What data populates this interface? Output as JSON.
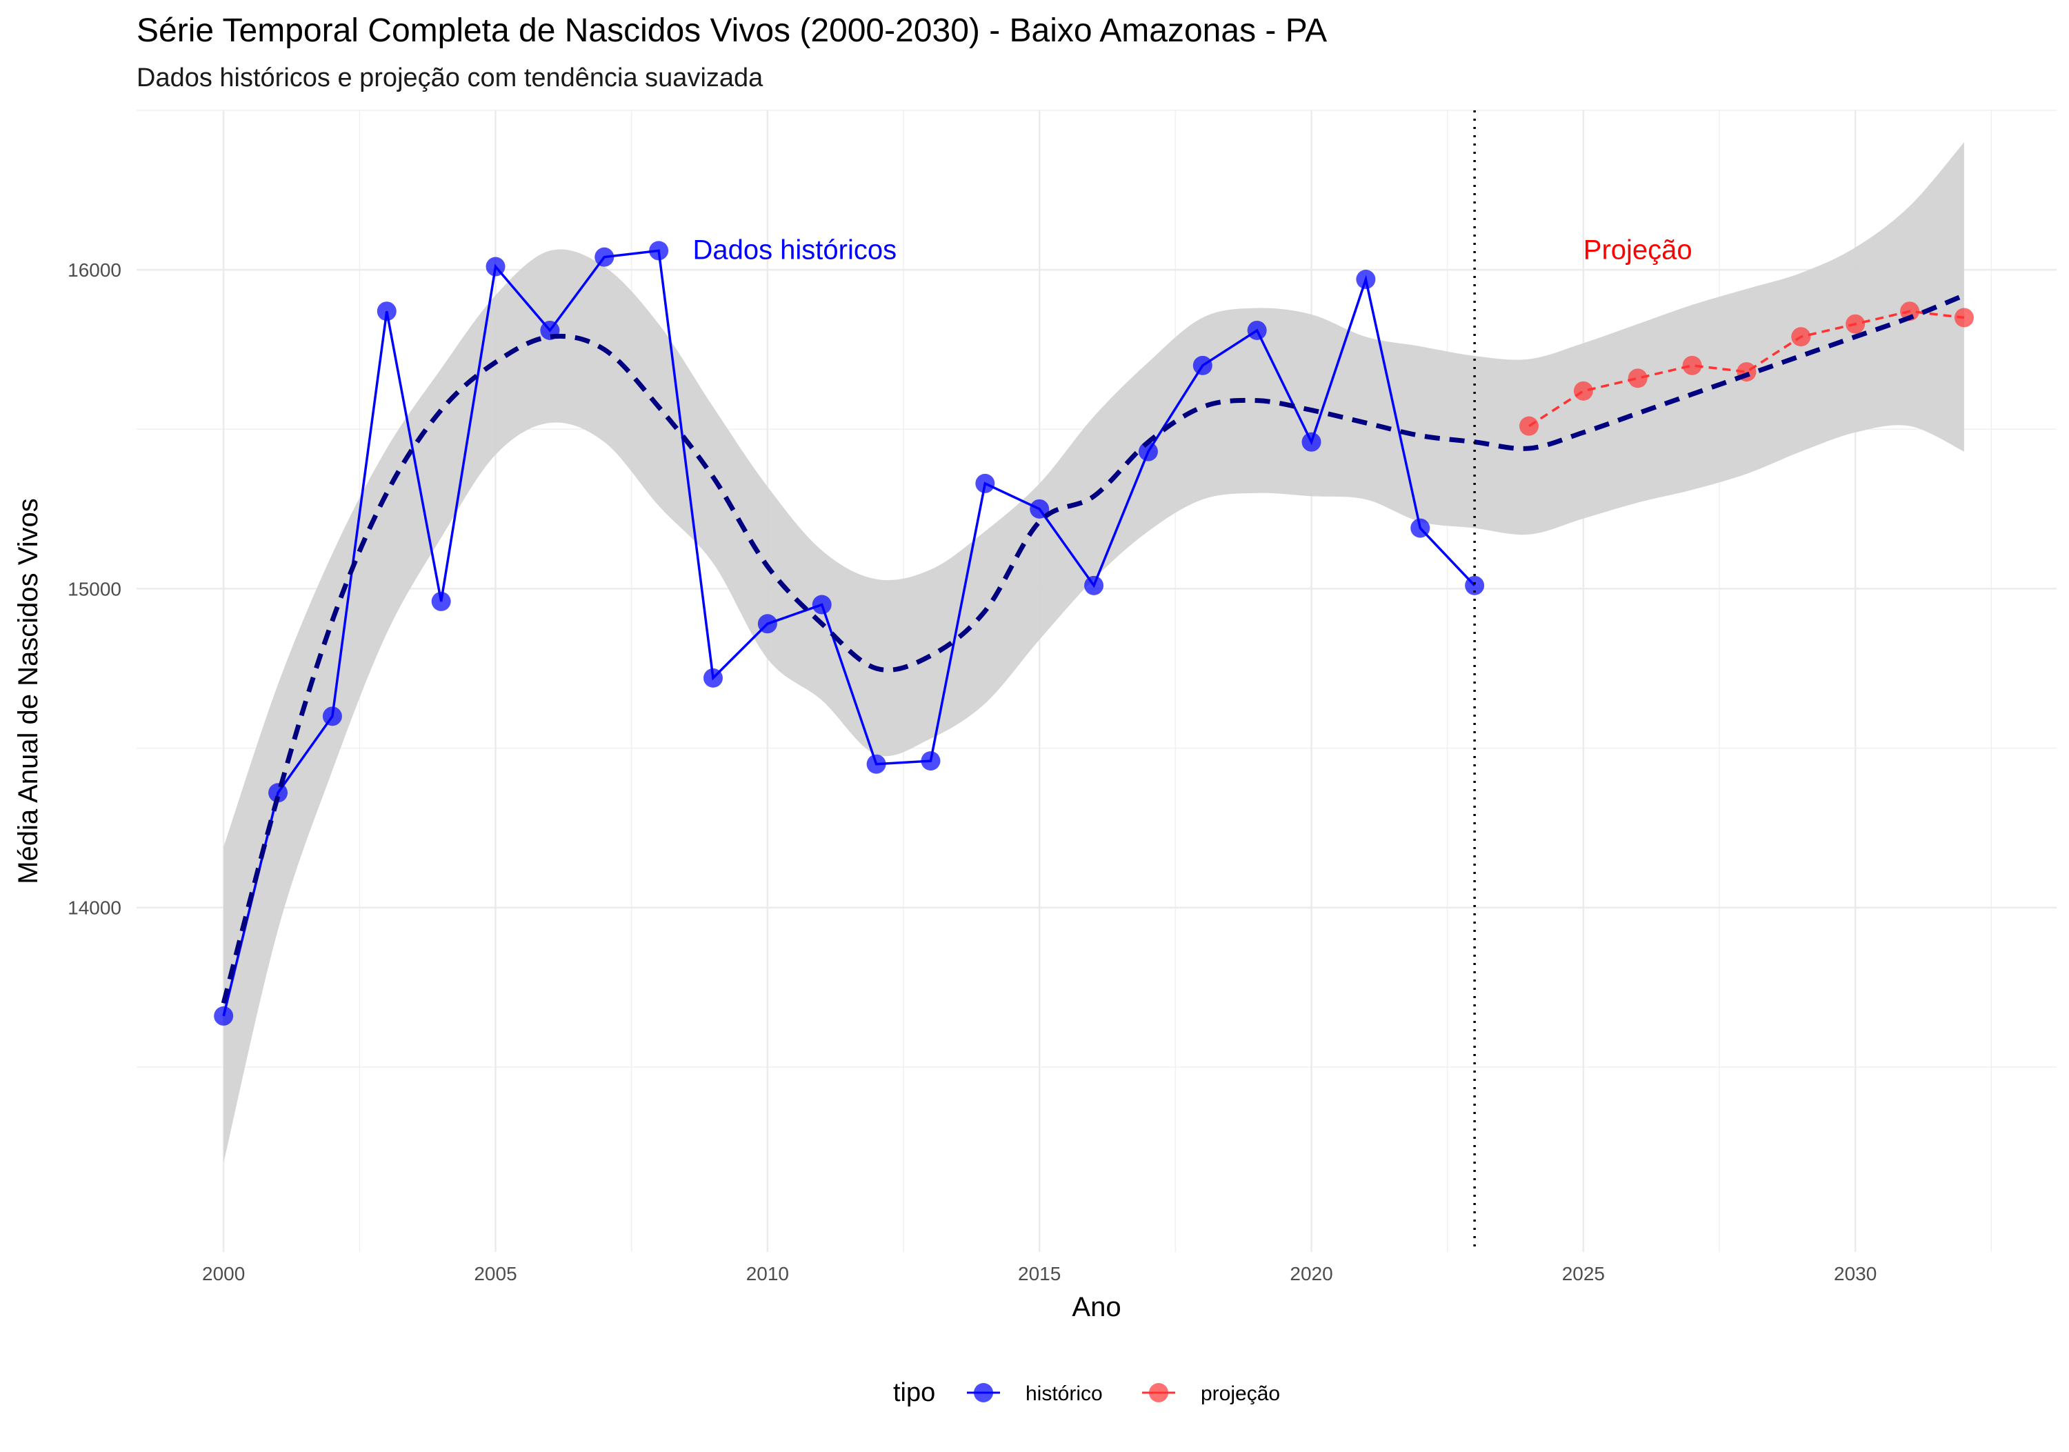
{
  "chart_data": {
    "type": "line",
    "title": "Série Temporal Completa de Nascidos Vivos (2000-2030) -  Baixo Amazonas - PA",
    "subtitle": "Dados históricos e projeção com tendência suavizada",
    "xlabel": "Ano",
    "ylabel": "Média Anual de Nascidos Vivos",
    "xlim": [
      1998.4,
      2033.7
    ],
    "ylim": [
      12920,
      16500
    ],
    "x_ticks": [
      2000,
      2005,
      2010,
      2015,
      2020,
      2025,
      2030
    ],
    "y_ticks": [
      14000,
      15000,
      16000
    ],
    "grid": true,
    "legend": {
      "title": "tipo",
      "position": "bottom",
      "entries": [
        {
          "label": "histórico",
          "color": "#0000ff"
        },
        {
          "label": "projeção",
          "color": "#ff3333"
        }
      ]
    },
    "annotations": [
      {
        "text": "Dados históricos",
        "x": 2010.5,
        "y": 16060,
        "color": "#0000ff"
      },
      {
        "text": "Projeção",
        "x": 2026,
        "y": 16060,
        "color": "#ff0000"
      }
    ],
    "vline": {
      "x": 2023,
      "style": "dotted"
    },
    "series": [
      {
        "name": "histórico",
        "color": "#0000ff",
        "x": [
          2000,
          2001,
          2002,
          2003,
          2004,
          2005,
          2006,
          2007,
          2008,
          2009,
          2010,
          2011,
          2012,
          2013,
          2014,
          2015,
          2016,
          2017,
          2018,
          2019,
          2020,
          2021,
          2022,
          2023
        ],
        "y": [
          13660,
          14360,
          14600,
          15870,
          14960,
          16010,
          15810,
          16040,
          16060,
          14720,
          14890,
          14950,
          14450,
          14460,
          15330,
          15250,
          15010,
          15430,
          15700,
          15810,
          15460,
          15970,
          15190,
          15010
        ]
      },
      {
        "name": "projeção",
        "color": "#ff3333",
        "x": [
          2024,
          2025,
          2026,
          2027,
          2028,
          2029,
          2030,
          2031,
          2032
        ],
        "y": [
          15510,
          15620,
          15660,
          15700,
          15680,
          15790,
          15830,
          15870,
          15850
        ]
      }
    ],
    "trend": {
      "style": "dashed",
      "color": "#000080",
      "band_color": "#d3d3d3",
      "x": [
        2000,
        2001,
        2002,
        2003,
        2004,
        2005,
        2006,
        2007,
        2008,
        2009,
        2010,
        2011,
        2012,
        2013,
        2014,
        2015,
        2016,
        2017,
        2018,
        2019,
        2020,
        2021,
        2022,
        2023,
        2024,
        2025,
        2026,
        2027,
        2028,
        2029,
        2030,
        2031,
        2032
      ],
      "y": [
        13700,
        14350,
        14900,
        15300,
        15560,
        15710,
        15790,
        15750,
        15570,
        15350,
        15070,
        14890,
        14750,
        14790,
        14930,
        15210,
        15290,
        15460,
        15570,
        15590,
        15560,
        15520,
        15480,
        15460,
        15440,
        15490,
        15550,
        15610,
        15670,
        15730,
        15790,
        15850,
        15920
      ],
      "lower": [
        13200,
        13930,
        14430,
        14860,
        15160,
        15420,
        15520,
        15460,
        15260,
        15080,
        14780,
        14650,
        14480,
        14530,
        14640,
        14840,
        15030,
        15180,
        15280,
        15300,
        15290,
        15280,
        15210,
        15190,
        15170,
        15220,
        15270,
        15310,
        15360,
        15430,
        15490,
        15510,
        15430
      ],
      "upper": [
        14190,
        14700,
        15110,
        15440,
        15690,
        15920,
        16060,
        16010,
        15830,
        15570,
        15320,
        15120,
        15030,
        15060,
        15180,
        15330,
        15540,
        15710,
        15850,
        15880,
        15860,
        15790,
        15760,
        15730,
        15720,
        15770,
        15830,
        15890,
        15940,
        15990,
        16070,
        16200,
        16400
      ]
    }
  }
}
